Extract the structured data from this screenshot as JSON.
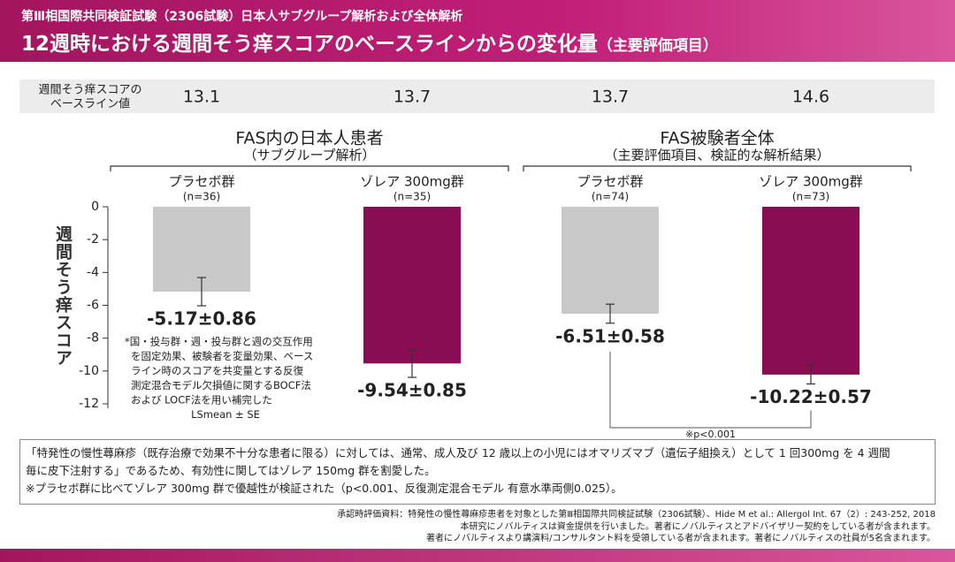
{
  "header": {
    "subtitle": "第Ⅲ相国際共同検証試験（2306試験）日本人サブグループ解析および全体解析",
    "title": "12週時における週間そう痒スコアのベースラインからの変化量",
    "title_note": "（主要評価項目）"
  },
  "baseline": {
    "label": [
      "週間そう痒スコアの",
      "ベースライン値"
    ],
    "values": [
      13.1,
      13.7,
      13.7,
      14.6
    ]
  },
  "chart_data": {
    "type": "bar",
    "y_label": "週間そう痒スコア",
    "groups": [
      {
        "title": "FAS内の日本人患者",
        "subtitle": "（サブグループ解析）"
      },
      {
        "title": "FAS被験者全体",
        "subtitle": "（主要評価項目、検証的な解析結果）"
      }
    ],
    "categories": [
      "プラセボ群",
      "ゾレア 300mg群",
      "プラセボ群",
      "ゾレア 300mg群"
    ],
    "n_labels": [
      "(n=36)",
      "(n=35)",
      "(n=74)",
      "(n=73)"
    ],
    "values": [
      -5.17,
      -9.54,
      -6.51,
      -10.22
    ],
    "errors": [
      0.86,
      0.85,
      0.58,
      0.57
    ],
    "value_labels": [
      "-5.17±0.86",
      "-9.54±0.85",
      "-6.51±0.58",
      "-10.22±0.57"
    ],
    "colors": [
      "#c8c8c8",
      "#8a0c52",
      "#c8c8c8",
      "#8a0c52"
    ],
    "ylim": [
      -12,
      0
    ],
    "yticks": [
      0,
      -2,
      -4,
      -6,
      -8,
      -10,
      -12
    ],
    "annotation": [
      "*国・投与群・週・投与群と週の交互作用",
      "を固定効果、被験者を変量効果、ベース",
      "ライン時のスコアを共変量とする反復",
      "測定混合モデル欠損値に関するBOCF法",
      "および LOCF法を用い補完した",
      "LSmean ± SE"
    ],
    "significance": "※p<0.001"
  },
  "footnote": [
    "「特発性の慢性蕁麻疹（既存治療で効果不十分な患者に限る）に対しては、通常、成人及び 12 歳以上の小児にはオマリズマブ（遺伝子組換え）として 1 回300mg を 4 週間",
    "毎に皮下注射する」であるため、有効性に関してはゾレア 150mg 群を割愛した。",
    "※プラセボ群に比べてゾレア 300mg 群で優越性が検証された（p<0.001、反復測定混合モデル 有意水準両側0.025）。"
  ],
  "source": [
    "承認時評価資料：特発性の慢性蕁麻疹患者を対象とした第Ⅲ相国際共同検証試験（2306試験）、Hide M et al.: Allergol Int. 67（2）: 243-252, 2018",
    "本研究にノバルティスは資金提供を行いました。著者にノバルティスとアドバイザリー契約をしている者が含まれます。",
    "著者にノバルティスより講演料/コンサルタント料を受領している者が含まれます。著者にノバルティスの社員が5名含まれます。"
  ]
}
